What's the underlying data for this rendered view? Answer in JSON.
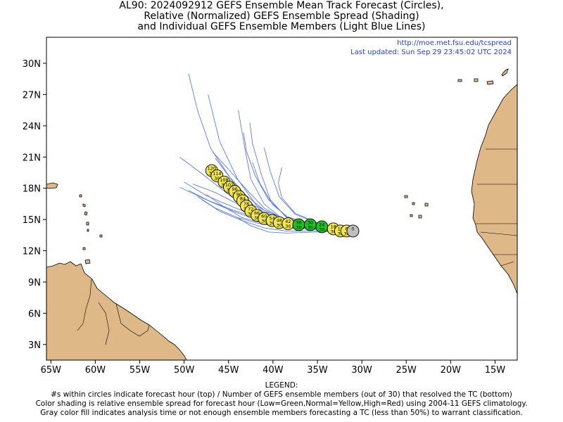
{
  "title": {
    "line1": "AL90: 2024092912 GEFS Ensemble Mean Track Forecast (Circles),",
    "line2": "Relative (Normalized) GEFS Ensemble Spread (Shading)",
    "line3": "and Individual GEFS Ensemble Members (Light Blue Lines)"
  },
  "notes": {
    "url": "http://moe.met.fsu.edu/tcspread",
    "updated": "Last updated: Sun Sep 29 23:45:02 UTC 2024"
  },
  "axes": {
    "lat_labels": [
      "3N",
      "6N",
      "9N",
      "12N",
      "15N",
      "18N",
      "21N",
      "24N",
      "27N",
      "30N"
    ],
    "lat_values": [
      3,
      6,
      9,
      12,
      15,
      18,
      21,
      24,
      27,
      30
    ],
    "lon_labels": [
      "65W",
      "60W",
      "55W",
      "50W",
      "45W",
      "40W",
      "35W",
      "30W",
      "25W",
      "20W",
      "15W"
    ],
    "lon_values": [
      -65,
      -60,
      -55,
      -50,
      -45,
      -40,
      -35,
      -30,
      -25,
      -20,
      -15
    ],
    "lon_range": [
      -65.5,
      -12.5
    ],
    "lat_range": [
      1.5,
      32.5
    ]
  },
  "colors": {
    "land": "#dfb887",
    "member_track": "#4a6cf0",
    "gray": "#bfbfbf",
    "yellow": "#f2e64a",
    "green": "#1fc21f",
    "note_text": "#1f3fd6"
  },
  "mean_track": [
    {
      "hour": "0",
      "members": "",
      "lon": -31.0,
      "lat": 13.9,
      "color": "gray"
    },
    {
      "hour": "6",
      "members": "30",
      "lon": -31.7,
      "lat": 13.9,
      "color": "yellow"
    },
    {
      "hour": "12",
      "members": "30",
      "lon": -32.4,
      "lat": 13.9,
      "color": "yellow"
    },
    {
      "hour": "18",
      "members": "30",
      "lon": -33.2,
      "lat": 14.1,
      "color": "yellow"
    },
    {
      "hour": "24",
      "members": "30",
      "lon": -34.5,
      "lat": 14.3,
      "color": "green"
    },
    {
      "hour": "30",
      "members": "30",
      "lon": -35.8,
      "lat": 14.5,
      "color": "green"
    },
    {
      "hour": "36",
      "members": "30",
      "lon": -37.1,
      "lat": 14.5,
      "color": "green"
    },
    {
      "hour": "42",
      "members": "30",
      "lon": -38.3,
      "lat": 14.6,
      "color": "yellow"
    },
    {
      "hour": "48",
      "members": "30",
      "lon": -39.3,
      "lat": 14.7,
      "color": "yellow"
    },
    {
      "hour": "54",
      "members": "30",
      "lon": -40.1,
      "lat": 14.9,
      "color": "yellow"
    },
    {
      "hour": "60",
      "members": "30",
      "lon": -41.0,
      "lat": 15.1,
      "color": "yellow"
    },
    {
      "hour": "66",
      "members": "30",
      "lon": -41.8,
      "lat": 15.4,
      "color": "yellow"
    },
    {
      "hour": "72",
      "members": "30",
      "lon": -42.5,
      "lat": 15.8,
      "color": "yellow"
    },
    {
      "hour": "78",
      "members": "30",
      "lon": -43.0,
      "lat": 16.3,
      "color": "yellow"
    },
    {
      "hour": "84",
      "members": "30",
      "lon": -43.4,
      "lat": 16.8,
      "color": "yellow"
    },
    {
      "hour": "90",
      "members": "30",
      "lon": -43.8,
      "lat": 17.2,
      "color": "yellow"
    },
    {
      "hour": "96",
      "members": "30",
      "lon": -44.3,
      "lat": 17.7,
      "color": "yellow"
    },
    {
      "hour": "102",
      "members": "30",
      "lon": -44.9,
      "lat": 18.1,
      "color": "yellow"
    },
    {
      "hour": "108",
      "members": "30",
      "lon": -45.5,
      "lat": 18.6,
      "color": "yellow"
    },
    {
      "hour": "114",
      "members": "30",
      "lon": -46.3,
      "lat": 19.2,
      "color": "yellow"
    },
    {
      "hour": "120",
      "members": "30",
      "lon": -46.9,
      "lat": 19.7,
      "color": "yellow"
    }
  ],
  "member_tracks": [
    [
      [
        -31.0,
        13.9
      ],
      [
        -35,
        14.1
      ],
      [
        -39,
        14.5
      ],
      [
        -42,
        15.6
      ],
      [
        -45,
        17.4
      ],
      [
        -48,
        19.4
      ],
      [
        -50.5,
        21.0
      ]
    ],
    [
      [
        -31.0,
        13.9
      ],
      [
        -35,
        14.2
      ],
      [
        -39,
        14.7
      ],
      [
        -42,
        16.0
      ],
      [
        -44.5,
        18.6
      ],
      [
        -47,
        21.8
      ],
      [
        -48.5,
        25.5
      ],
      [
        -49.5,
        29.0
      ]
    ],
    [
      [
        -31.0,
        13.9
      ],
      [
        -35,
        14.3
      ],
      [
        -39,
        14.9
      ],
      [
        -41.8,
        16.3
      ],
      [
        -44,
        18.9
      ],
      [
        -46,
        22.5
      ],
      [
        -47.3,
        27.0
      ]
    ],
    [
      [
        -31.0,
        13.9
      ],
      [
        -35,
        14.4
      ],
      [
        -39,
        15.1
      ],
      [
        -41,
        16.5
      ],
      [
        -42.5,
        18.9
      ],
      [
        -43.2,
        22.0
      ],
      [
        -43.9,
        25.5
      ]
    ],
    [
      [
        -31.0,
        13.9
      ],
      [
        -35,
        14.4
      ],
      [
        -38.5,
        15.2
      ],
      [
        -40.3,
        16.9
      ],
      [
        -41.3,
        19.3
      ],
      [
        -42.3,
        22.3
      ],
      [
        -42.6,
        24.3
      ]
    ],
    [
      [
        -31.0,
        13.9
      ],
      [
        -34.5,
        14.5
      ],
      [
        -37.5,
        15.5
      ],
      [
        -39.3,
        17.2
      ],
      [
        -40.3,
        19.6
      ],
      [
        -41.0,
        21.9
      ]
    ],
    [
      [
        -31.0,
        13.9
      ],
      [
        -34.5,
        14.5
      ],
      [
        -37.5,
        15.6
      ],
      [
        -39.0,
        17.1
      ],
      [
        -39.4,
        18.5
      ],
      [
        -39.0,
        20.0
      ]
    ],
    [
      [
        -31.0,
        13.9
      ],
      [
        -35,
        14.4
      ],
      [
        -38.5,
        15.0
      ],
      [
        -41,
        15.9
      ],
      [
        -43,
        17.3
      ],
      [
        -45,
        19.2
      ],
      [
        -46.5,
        20.9
      ]
    ],
    [
      [
        -31.0,
        13.9
      ],
      [
        -35,
        14.3
      ],
      [
        -38.5,
        14.8
      ],
      [
        -41.5,
        15.5
      ],
      [
        -44,
        16.5
      ],
      [
        -46.5,
        17.6
      ],
      [
        -49,
        18.4
      ]
    ],
    [
      [
        -31.0,
        13.9
      ],
      [
        -35,
        14.2
      ],
      [
        -38.5,
        14.6
      ],
      [
        -41.5,
        15.1
      ],
      [
        -44.5,
        15.9
      ],
      [
        -47.5,
        16.9
      ],
      [
        -50.5,
        18.1
      ]
    ],
    [
      [
        -31.0,
        13.9
      ],
      [
        -35,
        14.2
      ],
      [
        -38.5,
        14.6
      ],
      [
        -41.5,
        15.2
      ],
      [
        -44.5,
        16.2
      ],
      [
        -47.5,
        17.3
      ],
      [
        -50.0,
        18.6
      ]
    ],
    [
      [
        -31.0,
        13.9
      ],
      [
        -35,
        14.1
      ],
      [
        -38.5,
        14.4
      ],
      [
        -41.5,
        14.9
      ],
      [
        -44.5,
        15.8
      ],
      [
        -47.0,
        16.7
      ],
      [
        -49.5,
        17.8
      ]
    ],
    [
      [
        -31.0,
        13.9
      ],
      [
        -35,
        14.0
      ],
      [
        -38.5,
        14.2
      ],
      [
        -41.5,
        14.6
      ],
      [
        -44.0,
        15.2
      ],
      [
        -46.5,
        16.1
      ],
      [
        -48.5,
        17.2
      ]
    ],
    [
      [
        -31.0,
        13.9
      ],
      [
        -35,
        13.9
      ],
      [
        -38.5,
        13.9
      ],
      [
        -41.0,
        14.2
      ],
      [
        -43.5,
        14.9
      ],
      [
        -46.0,
        15.8
      ],
      [
        -48.0,
        16.9
      ]
    ],
    [
      [
        -31.0,
        13.9
      ],
      [
        -35,
        13.8
      ],
      [
        -38.5,
        13.7
      ],
      [
        -40.5,
        13.8
      ],
      [
        -42.5,
        14.4
      ],
      [
        -44.0,
        15.2
      ]
    ],
    [
      [
        -31.0,
        13.9
      ],
      [
        -35,
        14.3
      ],
      [
        -38.5,
        14.9
      ],
      [
        -41.0,
        16.1
      ],
      [
        -43.0,
        17.9
      ],
      [
        -45.0,
        19.8
      ],
      [
        -46.8,
        21.5
      ]
    ],
    [
      [
        -31.0,
        13.9
      ],
      [
        -35,
        14.3
      ],
      [
        -38.0,
        15.0
      ],
      [
        -40.0,
        16.4
      ],
      [
        -41.5,
        18.5
      ],
      [
        -42.3,
        20.5
      ]
    ],
    [
      [
        -31.0,
        13.9
      ],
      [
        -35,
        14.2
      ],
      [
        -38.5,
        14.7
      ],
      [
        -41.0,
        15.7
      ],
      [
        -43.0,
        16.9
      ],
      [
        -45.5,
        18.2
      ],
      [
        -47.5,
        19.4
      ]
    ],
    [
      [
        -31.0,
        13.9
      ],
      [
        -35,
        14.1
      ],
      [
        -38.5,
        14.3
      ],
      [
        -41.0,
        14.6
      ],
      [
        -43.5,
        15.2
      ],
      [
        -45.5,
        16.2
      ],
      [
        -47.5,
        17.4
      ]
    ],
    [
      [
        -31.0,
        13.9
      ],
      [
        -35,
        14.4
      ],
      [
        -38.5,
        15.3
      ],
      [
        -40.5,
        16.9
      ],
      [
        -42.0,
        19.2
      ],
      [
        -43.0,
        21.6
      ],
      [
        -43.3,
        23.3
      ]
    ]
  ],
  "legend": {
    "heading": "LEGEND:",
    "line1": "#s within circles indicate forecast hour (top) / Number of GEFS ensemble members (out of 30) that resolved the TC (bottom)",
    "line2": "Color shading is relative ensemble spread for forecast hour (Low=Green,Normal=Yellow,High=Red) using 2004-11 GEFS climatology.",
    "line3": "Gray color fill indicates analysis time or not enough ensemble members forecasting a TC (less than 50%) to warrant classification."
  }
}
